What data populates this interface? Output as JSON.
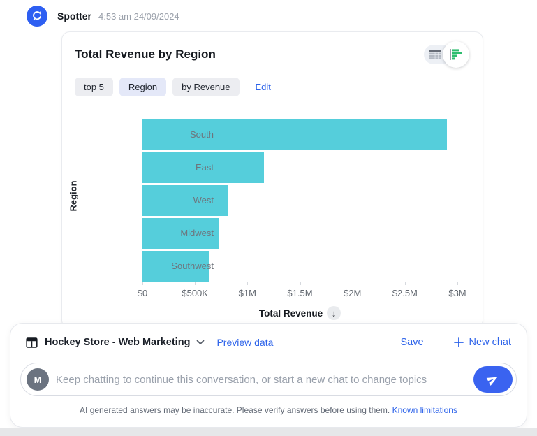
{
  "header": {
    "app_name": "Spotter",
    "timestamp": "4:53 am 24/09/2024"
  },
  "card": {
    "title": "Total Revenue by Region",
    "chips": [
      {
        "label": "top 5",
        "variant": "gray"
      },
      {
        "label": "Region",
        "variant": "blue"
      },
      {
        "label": "by Revenue",
        "variant": "gray"
      }
    ],
    "edit_label": "Edit",
    "view_toggle": {
      "selected": "bar-chart",
      "options": [
        "table",
        "bar-chart"
      ]
    }
  },
  "chart_data": {
    "type": "bar",
    "orientation": "horizontal",
    "title": "Total Revenue by Region",
    "categories": [
      "South",
      "East",
      "West",
      "Midwest",
      "Southwest"
    ],
    "values": [
      2900000,
      1160000,
      820000,
      730000,
      640000
    ],
    "xlabel": "Total Revenue",
    "ylabel": "Region",
    "xlim": [
      0,
      3000000
    ],
    "x_ticks": [
      "$0",
      "$500K",
      "$1M",
      "$1.5M",
      "$2M",
      "$2.5M",
      "$3M"
    ],
    "sort": "descending",
    "sort_icon": "↓",
    "bar_color": "#55cedb",
    "grid": false,
    "legend": false
  },
  "footer": {
    "dataset_name": "Hockey Store - Web Marketing",
    "preview_link": "Preview data",
    "save_label": "Save",
    "new_chat_label": "New chat",
    "avatar_letter": "M",
    "input_placeholder": "Keep chatting to continue this conversation, or start a new chat to change topics",
    "disclaimer": "AI generated answers may be inaccurate. Please verify answers before using them.",
    "limitations_link": "Known limitations"
  },
  "icons": {
    "spotter-avatar-icon": "lightbulb-with-sparkle",
    "table-view-icon": "data-table-grid",
    "chart-view-icon": "horizontal-bar-chart-green",
    "worksheet-icon": "table-outline",
    "chevron-down-icon": "▾",
    "plus-icon": "+",
    "send-icon": "paper-plane",
    "sort-descending-icon": "↓"
  },
  "colors": {
    "bar_teal": "#55cedb",
    "link_blue": "#2d63ea",
    "avatar_blue": "#2e5ff2",
    "send_button_blue": "#3a63f0",
    "chip_gray": "#ecedf1",
    "chip_blue": "#e4e8f8",
    "icon_green": "#2dbd6e"
  }
}
